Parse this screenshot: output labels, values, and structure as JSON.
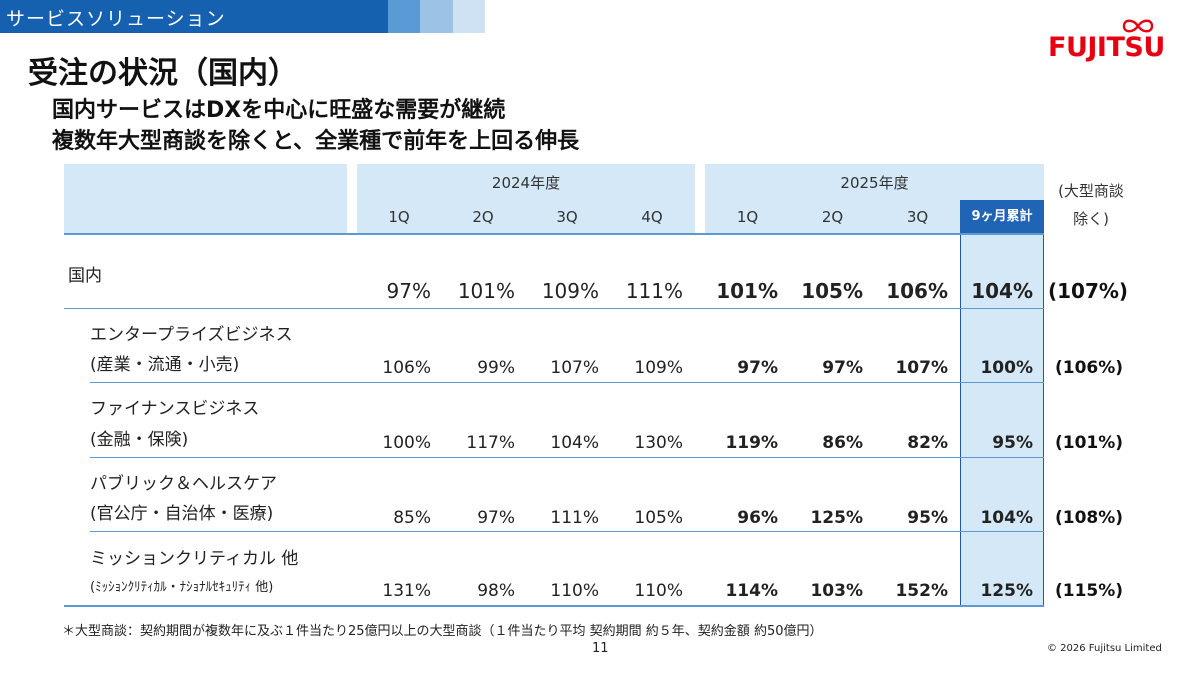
{
  "header": {
    "section_label": "サービスソリューション"
  },
  "logo": {
    "text": "FUJITSU"
  },
  "title": "受注の状況（国内）",
  "subtitles": [
    "国内サービスはDXを中心に旺盛な需要が継続",
    "複数年大型商談を除くと、全業種で前年を上回る伸長"
  ],
  "table": {
    "year_headers": [
      "2024年度",
      "2025年度"
    ],
    "quarter_headers": [
      "1Q",
      "2Q",
      "3Q",
      "4Q",
      "1Q",
      "2Q",
      "3Q",
      "9ヶ月累計"
    ],
    "side_note": [
      "(大型商談",
      "除く)"
    ],
    "rows": [
      {
        "label1": "国内",
        "label2": "",
        "values": [
          "97%",
          "101%",
          "109%",
          "111%",
          "101%",
          "105%",
          "106%",
          "104%"
        ],
        "excl": "(107%)"
      },
      {
        "label1": "エンタープライズビジネス",
        "label2": "(産業・流通・小売)",
        "values": [
          "106%",
          "99%",
          "107%",
          "109%",
          "97%",
          "97%",
          "107%",
          "100%"
        ],
        "excl": "(106%)"
      },
      {
        "label1": "ファイナンスビジネス",
        "label2": "(金融・保険)",
        "values": [
          "100%",
          "117%",
          "104%",
          "130%",
          "119%",
          "86%",
          "82%",
          "95%"
        ],
        "excl": "(101%)"
      },
      {
        "label1": "パブリック＆ヘルスケア",
        "label2": "(官公庁・自治体・医療)",
        "values": [
          "85%",
          "97%",
          "111%",
          "105%",
          "96%",
          "125%",
          "95%",
          "104%"
        ],
        "excl": "(108%)"
      },
      {
        "label1": "ミッションクリティカル 他",
        "label2": "(ﾐｯｼｮﾝｸﾘﾃｨｶﾙ・ﾅｼｮﾅﾙｾｷｭﾘﾃｨ 他)",
        "values": [
          "131%",
          "98%",
          "110%",
          "110%",
          "114%",
          "103%",
          "152%",
          "125%"
        ],
        "excl": "(115%)"
      }
    ]
  },
  "footnote": "＊大型商談：契約期間が複数年に及ぶ１件当たり25億円以上の大型商談（１件当たり平均 契約期間 約５年、契約金額 約50億円）",
  "page_number": "11",
  "copyright": "© 2026 Fujitsu Limited",
  "colors": {
    "brand_red": "#e60012",
    "header_blue": "#1660b0",
    "table_header_bg": "#d4e8f7",
    "highlight_blue": "#1f64b5"
  }
}
